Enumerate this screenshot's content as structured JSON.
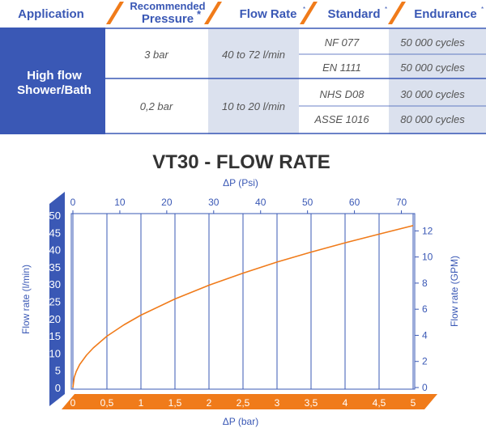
{
  "table": {
    "headers": [
      "Application",
      "Recommended",
      "Pressure",
      "Flow Rate",
      "Standard",
      "Endurance"
    ],
    "application": [
      "High flow",
      "Shower/Bath"
    ],
    "groups": [
      {
        "pressure": "3 bar",
        "flow_rate": "40 to 72 l/min",
        "rows": [
          {
            "standard": "NF 077",
            "endurance": "50 000 cycles"
          },
          {
            "standard": "EN 1111",
            "endurance": "50 000 cycles"
          }
        ]
      },
      {
        "pressure": "0,2 bar",
        "flow_rate": "10 to 20 l/min",
        "rows": [
          {
            "standard": "NHS D08",
            "endurance": "30 000 cycles"
          },
          {
            "standard": "ASSE 1016",
            "endurance": "80 000 cycles"
          }
        ]
      }
    ],
    "colors": {
      "header_blue": "#3a58b5",
      "orange": "#f07b1a",
      "shade": "#dbe1ee"
    }
  },
  "chart_data": {
    "type": "line",
    "title": "VT30 - FLOW RATE",
    "x_bottom": {
      "label": "ΔP (bar)",
      "range": [
        0,
        5
      ],
      "ticks": [
        "0",
        "0,5",
        "1",
        "1,5",
        "2",
        "2,5",
        "3",
        "3,5",
        "4",
        "4,5",
        "5"
      ]
    },
    "x_top": {
      "label": "ΔP (Psi)",
      "range": [
        0,
        72.5
      ],
      "ticks": [
        "0",
        "10",
        "20",
        "30",
        "40",
        "50",
        "60",
        "70"
      ]
    },
    "y_left": {
      "label": "Flow rate (l/min)",
      "range": [
        0,
        50
      ],
      "ticks": [
        "0",
        "5",
        "10",
        "15",
        "20",
        "25",
        "30",
        "35",
        "40",
        "45",
        "50"
      ]
    },
    "y_right": {
      "label": "Flow rate (GPM)",
      "range": [
        0,
        13.2
      ],
      "ticks": [
        "0",
        "2",
        "4",
        "6",
        "8",
        "10",
        "12"
      ]
    },
    "grid": "vertical",
    "series": [
      {
        "color": "#f07b1a",
        "x": [
          0,
          0.02,
          0.05,
          0.1,
          0.2,
          0.3,
          0.5,
          0.75,
          1,
          1.5,
          2,
          2.5,
          3,
          3.5,
          4,
          4.5,
          5
        ],
        "y": [
          0,
          3.0,
          4.7,
          6.7,
          9.4,
          11.5,
          14.9,
          18.2,
          21.0,
          25.7,
          29.7,
          33.2,
          36.4,
          39.3,
          42.0,
          44.5,
          47.0
        ]
      }
    ]
  }
}
